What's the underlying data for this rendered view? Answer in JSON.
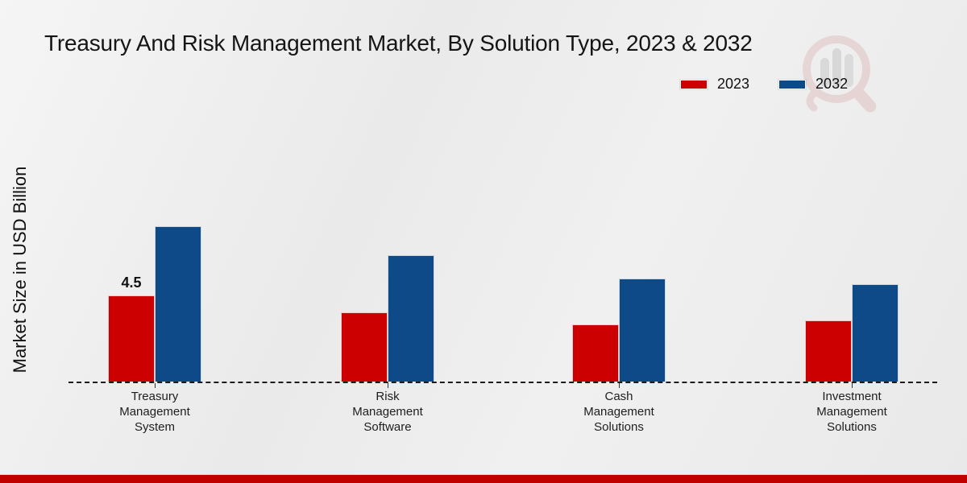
{
  "page": {
    "title": "Treasury And Risk Management Market, By Solution Type, 2023 & 2032"
  },
  "legend": {
    "items": [
      {
        "label": "2023",
        "color": "#cc0001"
      },
      {
        "label": "2032",
        "color": "#0d4a87"
      }
    ]
  },
  "watermark": {
    "name": "market-research-future-logo"
  },
  "colors": {
    "bar_red": "#cc0001",
    "bar_blue": "#0d4a87",
    "bottom_strip": "#c00000",
    "background": "#ececec",
    "baseline": "#1c1c1c"
  },
  "chart_data": {
    "type": "bar",
    "title": "Treasury And Risk Management Market, By Solution Type, 2023 & 2032",
    "xlabel": "",
    "ylabel": "Market Size in USD Billion",
    "categories": [
      "Treasury Management System",
      "Risk Management Software",
      "Cash Management Solutions",
      "Investment Management Solutions"
    ],
    "series": [
      {
        "name": "2023",
        "color": "#cc0001",
        "values": [
          4.5,
          3.6,
          3.0,
          3.2
        ],
        "data_labels": [
          "4.5",
          "",
          "",
          ""
        ]
      },
      {
        "name": "2032",
        "color": "#0d4a87",
        "values": [
          8.1,
          6.6,
          5.4,
          5.1
        ],
        "data_labels": [
          "",
          "",
          "",
          ""
        ]
      }
    ],
    "legend_position": "top-right",
    "grid": false,
    "y_axis_ticks_visible": false,
    "baseline_style": "dashed",
    "ylim": [
      0,
      9
    ]
  }
}
